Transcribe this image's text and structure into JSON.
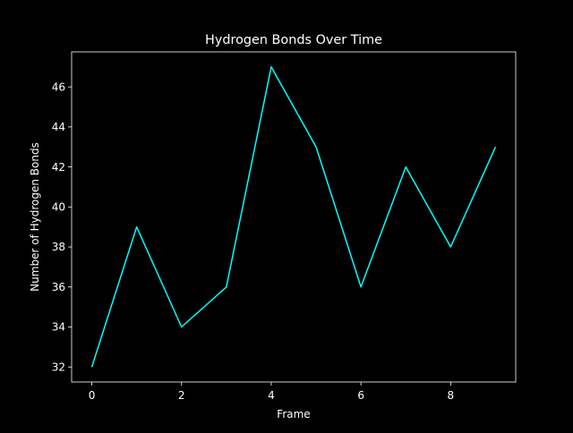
{
  "chart_data": {
    "type": "line",
    "title": "Hydrogen Bonds Over Time",
    "xlabel": "Frame",
    "ylabel": "Number of Hydrogen Bonds",
    "x": [
      0,
      1,
      2,
      3,
      4,
      5,
      6,
      7,
      8,
      9
    ],
    "series": [
      {
        "values": [
          32,
          39,
          34,
          36,
          47,
          43,
          36,
          42,
          38,
          43
        ],
        "color": "#00ffff"
      }
    ],
    "xlim": [
      -0.45,
      9.45
    ],
    "ylim": [
      31.25,
      47.75
    ],
    "xticks": [
      0,
      2,
      4,
      6,
      8
    ],
    "yticks": [
      32,
      34,
      36,
      38,
      40,
      42,
      44,
      46
    ],
    "grid": false,
    "legend": "none",
    "background": "#000000",
    "axes_color": "#ffffff"
  }
}
